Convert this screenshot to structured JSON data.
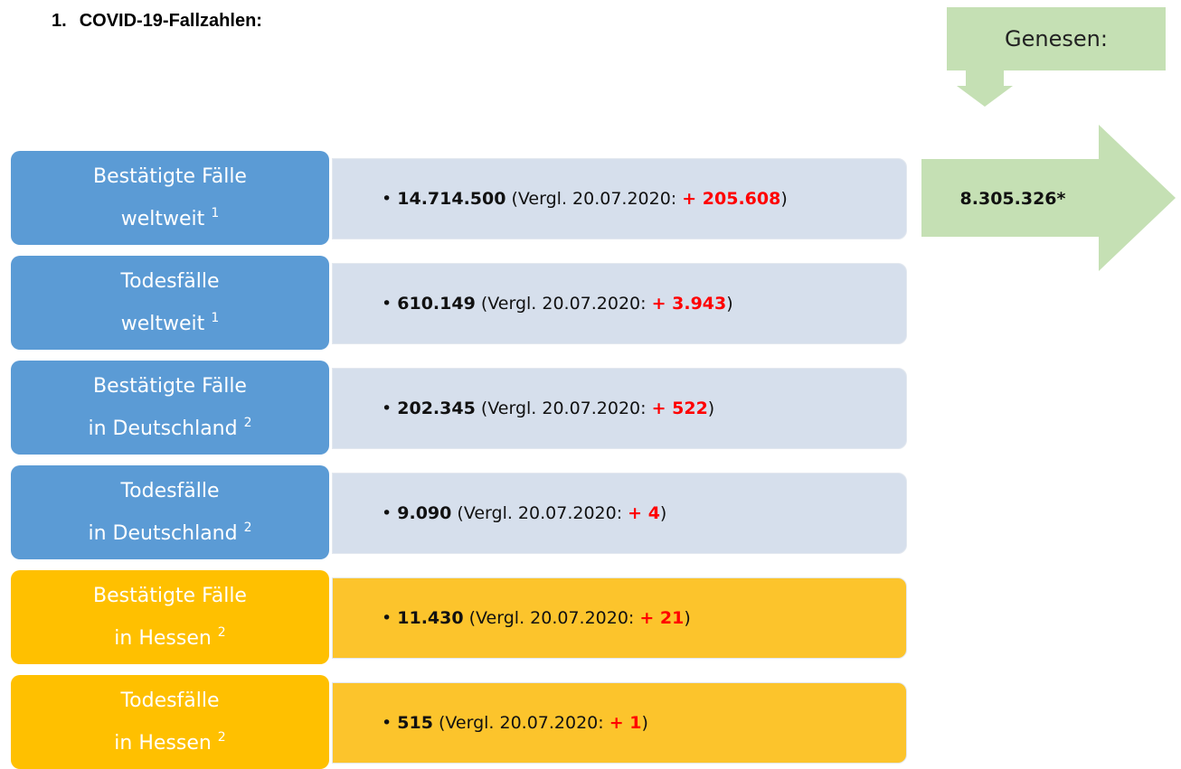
{
  "header": {
    "number": "1.",
    "title": "COVID-19-Fallzahlen:"
  },
  "recovered": {
    "label": "Genesen:",
    "value": "8.305.326*"
  },
  "rows": [
    {
      "label": "Bestätigte Fälle",
      "region": "weltweit",
      "note": "1",
      "value": "14.714.500",
      "compare": "(Vergl. 20.07.2020: ",
      "delta": "+ 205.608",
      "close": ")",
      "scope": "world"
    },
    {
      "label": "Todesfälle",
      "region": "weltweit",
      "note": "1",
      "value": "610.149",
      "compare": "(Vergl. 20.07.2020: ",
      "delta": "+ 3.943",
      "close": ")",
      "scope": "world"
    },
    {
      "label": "Bestätigte Fälle",
      "region": "in Deutschland",
      "note": "2",
      "value": "202.345",
      "compare": "(Vergl. 20.07.2020: ",
      "delta": "+ 522",
      "close": ")",
      "scope": "world"
    },
    {
      "label": "Todesfälle",
      "region": "in Deutschland",
      "note": "2",
      "value": "9.090",
      "compare": "(Vergl. 20.07.2020: ",
      "delta": "+ 4",
      "close": ")",
      "scope": "world"
    },
    {
      "label": "Bestätigte Fälle",
      "region": "in Hessen",
      "note": "2",
      "value": "11.430",
      "compare": "(Vergl. 20.07.2020: ",
      "delta": "+ 21",
      "close": ")",
      "scope": "state"
    },
    {
      "label": "Todesfälle",
      "region": "in Hessen",
      "note": "2",
      "value": "515",
      "compare": "(Vergl. 20.07.2020: ",
      "delta": "+ 1",
      "close": ")",
      "scope": "state"
    }
  ]
}
